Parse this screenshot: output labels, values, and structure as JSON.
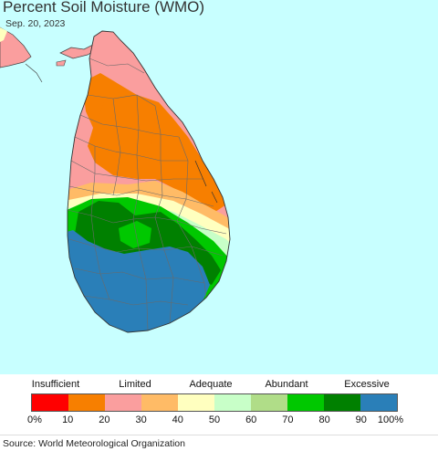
{
  "map": {
    "title": "Percent Soil Moisture (WMO)",
    "date": "Sep. 20, 2023",
    "ocean_color": "#c8ffff",
    "zones_north_to_south": [
      "#fa9e9e",
      "#f77f00",
      "#ffbb66",
      "#ffffbf",
      "#c8ffc8",
      "#00c800",
      "#008000",
      "#2a7fb8"
    ]
  },
  "legend": {
    "categories": [
      "Insufficient",
      "Limited",
      "Adequate",
      "Abundant",
      "Excessive"
    ],
    "colors": [
      "#ff0000",
      "#f77f00",
      "#fa9e9e",
      "#ffbb66",
      "#ffffbf",
      "#c8ffc8",
      "#b0dd88",
      "#00c800",
      "#008000",
      "#2a7fb8"
    ],
    "ticks": [
      "0%",
      "10",
      "20",
      "30",
      "40",
      "50",
      "60",
      "70",
      "80",
      "90",
      "100%"
    ]
  },
  "footer": {
    "source": "Source: World Meteorological Organization"
  }
}
